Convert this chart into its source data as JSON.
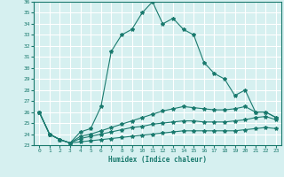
{
  "xlabel": "Humidex (Indice chaleur)",
  "x": [
    0,
    1,
    2,
    3,
    4,
    5,
    6,
    7,
    8,
    9,
    10,
    11,
    12,
    13,
    14,
    15,
    16,
    17,
    18,
    19,
    20,
    21,
    22,
    23
  ],
  "line1": [
    26,
    24,
    23.5,
    23.2,
    24.2,
    24.5,
    26.5,
    31.5,
    33.0,
    33.5,
    35.0,
    36.0,
    34.0,
    34.5,
    33.5,
    33.0,
    30.5,
    29.5,
    29.0,
    27.5,
    28.0,
    26.0,
    26.0,
    25.5
  ],
  "line2": [
    26,
    24,
    23.5,
    23.2,
    23.8,
    24.0,
    24.3,
    24.6,
    24.9,
    25.2,
    25.5,
    25.8,
    26.1,
    26.3,
    26.5,
    26.4,
    26.3,
    26.2,
    26.2,
    26.3,
    26.5,
    26.0,
    26.0,
    25.5
  ],
  "line3": [
    26,
    24,
    23.5,
    23.2,
    23.6,
    23.8,
    24.0,
    24.2,
    24.4,
    24.6,
    24.7,
    24.9,
    25.0,
    25.1,
    25.2,
    25.2,
    25.1,
    25.1,
    25.1,
    25.2,
    25.3,
    25.5,
    25.6,
    25.3
  ],
  "line4": [
    26,
    24,
    23.5,
    23.2,
    23.3,
    23.4,
    23.5,
    23.6,
    23.7,
    23.8,
    23.9,
    24.0,
    24.1,
    24.2,
    24.3,
    24.3,
    24.3,
    24.3,
    24.3,
    24.3,
    24.4,
    24.5,
    24.6,
    24.5
  ],
  "line_color": "#1a7a6e",
  "background_color": "#d6f0f0",
  "grid_color": "#ffffff",
  "ylim": [
    23,
    36
  ],
  "xlim": [
    -0.5,
    23.5
  ],
  "yticks": [
    23,
    24,
    25,
    26,
    27,
    28,
    29,
    30,
    31,
    32,
    33,
    34,
    35,
    36
  ],
  "xticks": [
    0,
    1,
    2,
    3,
    4,
    5,
    6,
    7,
    8,
    9,
    10,
    11,
    12,
    13,
    14,
    15,
    16,
    17,
    18,
    19,
    20,
    21,
    22,
    23
  ]
}
